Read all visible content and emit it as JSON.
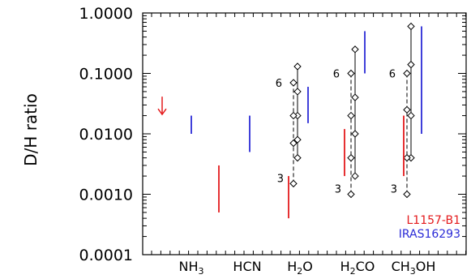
{
  "chart_data": {
    "type": "scatter",
    "ylabel": "D/H ratio",
    "yscale": "log",
    "ylim": [
      0.0001,
      1.0
    ],
    "yticks": [
      {
        "value": 0.0001,
        "label": "0.0001"
      },
      {
        "value": 0.001,
        "label": "0.0010"
      },
      {
        "value": 0.01,
        "label": "0.0100"
      },
      {
        "value": 0.1,
        "label": "0.1000"
      },
      {
        "value": 1.0,
        "label": "1.0000"
      }
    ],
    "categories": [
      {
        "base": "NH",
        "sub": "3",
        "tail": ""
      },
      {
        "base": "HCN",
        "sub": "",
        "tail": ""
      },
      {
        "base": "H",
        "sub": "2",
        "tail": "O"
      },
      {
        "base": "H",
        "sub": "2",
        "tail": "CO"
      },
      {
        "base": "CH",
        "sub": "3",
        "tail": "OH"
      }
    ],
    "legend": [
      {
        "name": "L1157-B1",
        "color": "#e41a1c"
      },
      {
        "name": "IRAS16293",
        "color": "#2a2ad6"
      }
    ],
    "series": [
      {
        "name": "L1157-B1",
        "color": "#e41a1c",
        "ranges": [
          {
            "category": 0,
            "upper_limit": 0.04
          },
          {
            "category": 1,
            "low": 0.0005,
            "high": 0.003
          },
          {
            "category": 2,
            "low": 0.0004,
            "high": 0.002
          },
          {
            "category": 3,
            "low": 0.002,
            "high": 0.012
          },
          {
            "category": 4,
            "low": 0.002,
            "high": 0.02
          }
        ]
      },
      {
        "name": "IRAS16293",
        "color": "#2a2ad6",
        "ranges": [
          {
            "category": 0,
            "low": 0.01,
            "high": 0.02
          },
          {
            "category": 1,
            "low": 0.005,
            "high": 0.02
          },
          {
            "category": 2,
            "low": 0.015,
            "high": 0.06
          },
          {
            "category": 3,
            "low": 0.1,
            "high": 0.5
          },
          {
            "category": 4,
            "low": 0.01,
            "high": 0.6
          }
        ]
      }
    ],
    "model_tracks": [
      {
        "category": 2,
        "label_top": "6",
        "label_bottom": "3",
        "solid": [
          0.004,
          0.008,
          0.02,
          0.05,
          0.13
        ],
        "dashed": [
          0.0015,
          0.007,
          0.02,
          0.07
        ]
      },
      {
        "category": 3,
        "label_top": "6",
        "label_bottom": "3",
        "solid": [
          0.002,
          0.01,
          0.04,
          0.25
        ],
        "dashed": [
          0.001,
          0.004,
          0.02,
          0.1
        ]
      },
      {
        "category": 4,
        "label_top": "6",
        "label_bottom": "3",
        "solid": [
          0.004,
          0.02,
          0.14,
          0.6
        ],
        "dashed": [
          0.001,
          0.004,
          0.025,
          0.1
        ]
      }
    ]
  }
}
